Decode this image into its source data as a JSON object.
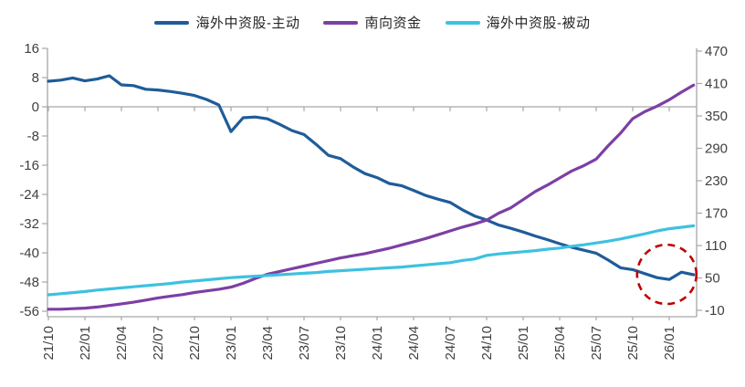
{
  "legend": {
    "items": [
      {
        "label": "海外中资股-主动",
        "color": "#1F5C99"
      },
      {
        "label": "南向资金",
        "color": "#7C3FA5"
      },
      {
        "label": "海外中资股-被动",
        "color": "#3EC1E0"
      }
    ]
  },
  "chart_data": {
    "type": "line",
    "title": "",
    "x": [
      "21/10",
      "21/11",
      "21/12",
      "22/01",
      "22/02",
      "22/03",
      "22/04",
      "22/05",
      "22/06",
      "22/07",
      "22/08",
      "22/09",
      "22/10",
      "22/11",
      "22/12",
      "23/01",
      "23/02",
      "23/03",
      "23/04",
      "23/05",
      "23/06",
      "23/07",
      "23/08",
      "23/09",
      "23/10",
      "23/11",
      "23/12",
      "24/01",
      "24/02",
      "24/03",
      "24/04",
      "24/05",
      "24/06",
      "24/07",
      "24/08",
      "24/09",
      "24/10",
      "24/11",
      "24/12",
      "25/01",
      "25/02",
      "25/03",
      "25/04",
      "25/05",
      "25/06",
      "25/07",
      "25/08",
      "25/09",
      "25/10",
      "25/11",
      "25/12",
      "26/01",
      "26/02",
      "26/03"
    ],
    "x_tick_labels": [
      "21/10",
      "22/01",
      "22/04",
      "22/07",
      "22/10",
      "23/01",
      "23/04",
      "23/07",
      "23/10",
      "24/01",
      "24/04",
      "24/07",
      "24/10",
      "25/01",
      "25/04",
      "25/07",
      "25/10",
      "26/01"
    ],
    "series": [
      {
        "name": "海外中资股-主动",
        "axis": "left",
        "color": "#1F5C99",
        "values": [
          7.0,
          7.3,
          7.9,
          7.1,
          7.6,
          8.5,
          6.0,
          5.8,
          4.8,
          4.6,
          4.2,
          3.7,
          3.1,
          2.0,
          0.5,
          -6.8,
          -3.0,
          -2.8,
          -3.3,
          -4.8,
          -6.5,
          -7.6,
          -10.3,
          -13.3,
          -14.2,
          -16.4,
          -18.3,
          -19.4,
          -21.0,
          -21.6,
          -22.9,
          -24.3,
          -25.3,
          -26.2,
          -28.2,
          -29.9,
          -31.0,
          -32.4,
          -33.3,
          -34.3,
          -35.4,
          -36.4,
          -37.5,
          -38.5,
          -39.3,
          -40.1,
          -42.0,
          -44.1,
          -44.6,
          -45.7,
          -46.8,
          -47.3,
          -45.3,
          -46.0
        ]
      },
      {
        "name": "南向资金",
        "axis": "right",
        "color": "#7C3FA5",
        "values": [
          -8,
          -8,
          -7,
          -6,
          -4,
          -1,
          2,
          5,
          9,
          13,
          16,
          19,
          23,
          26,
          29,
          33,
          40,
          49,
          57,
          62,
          67,
          72,
          77,
          82,
          87,
          91,
          95,
          100,
          105,
          111,
          117,
          123,
          130,
          137,
          144,
          150,
          157,
          170,
          180,
          195,
          210,
          222,
          235,
          248,
          258,
          270,
          295,
          318,
          345,
          358,
          368,
          380,
          394,
          407
        ]
      },
      {
        "name": "海外中资股-被动",
        "axis": "left",
        "color": "#3EC1E0",
        "values": [
          -51.5,
          -51.2,
          -50.9,
          -50.6,
          -50.2,
          -49.9,
          -49.6,
          -49.3,
          -49.0,
          -48.7,
          -48.4,
          -48.0,
          -47.7,
          -47.4,
          -47.1,
          -46.8,
          -46.6,
          -46.4,
          -46.2,
          -46.0,
          -45.8,
          -45.6,
          -45.4,
          -45.1,
          -44.9,
          -44.7,
          -44.5,
          -44.3,
          -44.1,
          -43.9,
          -43.6,
          -43.3,
          -43.0,
          -42.7,
          -42.1,
          -41.7,
          -40.7,
          -40.3,
          -40.0,
          -39.7,
          -39.4,
          -39.0,
          -38.7,
          -38.2,
          -37.8,
          -37.3,
          -36.8,
          -36.2,
          -35.5,
          -34.8,
          -34.0,
          -33.4,
          -33.0,
          -32.6
        ]
      }
    ],
    "left_axis": {
      "ticks": [
        16,
        8,
        0,
        -8,
        -16,
        -24,
        -32,
        -40,
        -48,
        -56
      ],
      "min": -56,
      "max": 16
    },
    "right_axis": {
      "ticks": [
        470,
        410,
        350,
        290,
        230,
        170,
        110,
        50,
        -10
      ],
      "min": -10,
      "max": 470
    },
    "grid": "zero-line-only",
    "legend_position": "top",
    "annotation": {
      "shape": "dashed-circle",
      "color": "#C00000",
      "x_month": "25/12",
      "x_index": 50.8,
      "value_left": -45.9,
      "meaning": "highlights recent dip and rebound of 海外中资股-主动 line"
    }
  },
  "colors": {
    "axis": "#A6A6A6",
    "tick_text": "#404040",
    "background": "#FFFFFF",
    "annotation": "#C00000"
  }
}
